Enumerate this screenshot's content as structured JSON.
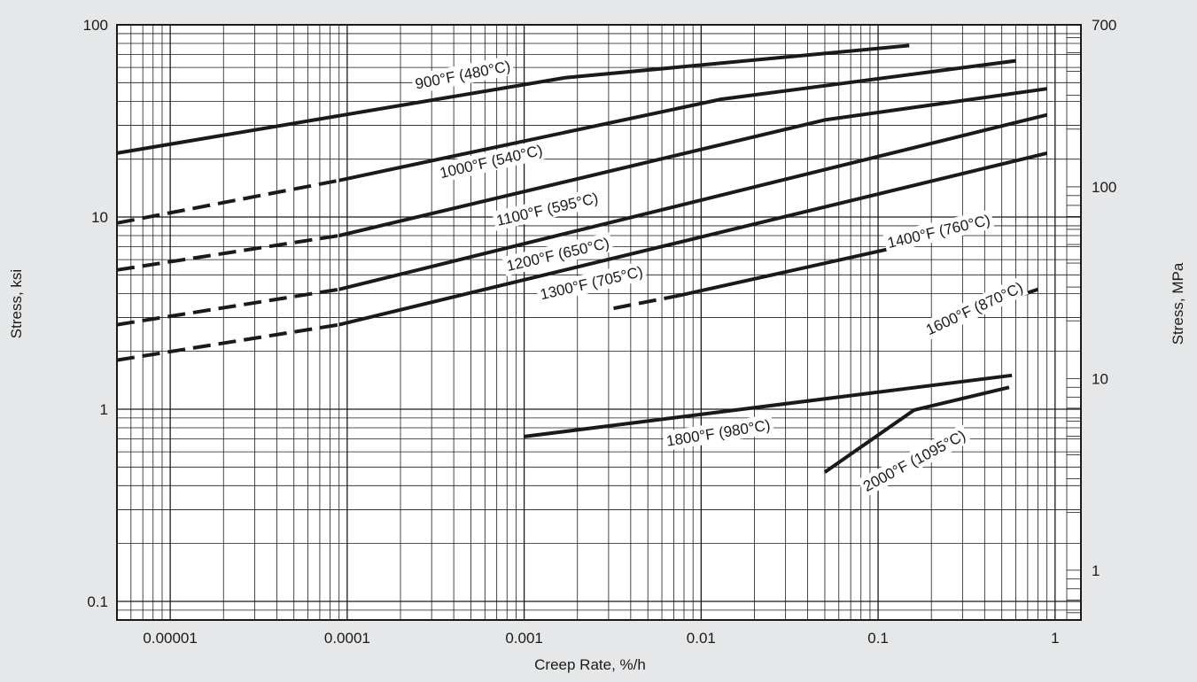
{
  "chart_data": {
    "type": "line",
    "x_scale": "log",
    "y_scale": "log",
    "xlabel": "Creep Rate, %/h",
    "ylabel_left": "Stress, ksi",
    "ylabel_right": "Stress, MPa",
    "xlim": [
      5e-06,
      1.4
    ],
    "ylim_left": [
      0.08,
      100
    ],
    "ylim_right": [
      0.55,
      700
    ],
    "x_tick_labels": [
      "0.00001",
      "0.0001",
      "0.001",
      "0.01",
      "0.1",
      "1"
    ],
    "y_left_tick_labels": [
      "0.1",
      "1",
      "10",
      "100"
    ],
    "y_right_tick_labels": [
      "1",
      "10",
      "100",
      "700"
    ],
    "grid": true,
    "line_color": "#1a1a1a",
    "background_color": "#ffffff",
    "page_background": "#e6e7e8",
    "series": [
      {
        "name": "900°F (480°C)",
        "segments": [
          {
            "style": "solid",
            "points": [
              [
                5e-06,
                21.5
              ],
              [
                0.0017,
                53
              ],
              [
                0.15,
                78
              ]
            ]
          }
        ]
      },
      {
        "name": "1000°F (540°C)",
        "segments": [
          {
            "style": "dashed",
            "points": [
              [
                5e-06,
                9.3
              ],
              [
                9e-05,
                15.5
              ]
            ]
          },
          {
            "style": "solid",
            "points": [
              [
                9e-05,
                15.5
              ],
              [
                0.013,
                41
              ],
              [
                0.6,
                65
              ]
            ]
          }
        ]
      },
      {
        "name": "1100°F (595°C)",
        "segments": [
          {
            "style": "dashed",
            "points": [
              [
                5e-06,
                5.3
              ],
              [
                9e-05,
                8.0
              ]
            ]
          },
          {
            "style": "solid",
            "points": [
              [
                9e-05,
                8.0
              ],
              [
                0.05,
                32
              ],
              [
                0.9,
                46.5
              ]
            ]
          }
        ]
      },
      {
        "name": "1200°F (650°C)",
        "segments": [
          {
            "style": "dashed",
            "points": [
              [
                5e-06,
                2.75
              ],
              [
                9e-05,
                4.2
              ]
            ]
          },
          {
            "style": "solid",
            "points": [
              [
                9e-05,
                4.2
              ],
              [
                0.9,
                34
              ]
            ]
          }
        ]
      },
      {
        "name": "1300°F (705°C)",
        "segments": [
          {
            "style": "dashed",
            "points": [
              [
                5e-06,
                1.8
              ],
              [
                9e-05,
                2.75
              ]
            ]
          },
          {
            "style": "solid",
            "points": [
              [
                9e-05,
                2.75
              ],
              [
                0.9,
                21.5
              ]
            ]
          }
        ]
      },
      {
        "name": "1400°F (760°C)",
        "segments": [
          {
            "style": "dashed",
            "points": [
              [
                0.0032,
                3.35
              ],
              [
                0.0075,
                3.9
              ]
            ]
          },
          {
            "style": "solid",
            "points": [
              [
                0.0075,
                3.9
              ],
              [
                0.45,
                9.0
              ]
            ]
          }
        ]
      },
      {
        "name": "1600°F (870°C)",
        "segments": [
          {
            "style": "solid",
            "points": [
              [
                0.27,
                3.0
              ],
              [
                0.8,
                4.2
              ]
            ]
          }
        ]
      },
      {
        "name": "1800°F (980°C)",
        "segments": [
          {
            "style": "solid",
            "points": [
              [
                0.001,
                0.72
              ],
              [
                0.57,
                1.5
              ]
            ]
          }
        ]
      },
      {
        "name": "2000°F (1095°C)",
        "segments": [
          {
            "style": "solid",
            "points": [
              [
                0.05,
                0.47
              ],
              [
                0.16,
                0.99
              ],
              [
                0.55,
                1.3
              ]
            ]
          }
        ]
      }
    ],
    "annotations": [
      {
        "text": "900°F (480°C)",
        "x": 0.00045,
        "y": 55,
        "angle": 11
      },
      {
        "text": "1000°F (540°C)",
        "x": 0.00065,
        "y": 19.5,
        "angle": 13
      },
      {
        "text": "1100°F (595°C)",
        "x": 0.00135,
        "y": 11.0,
        "angle": 13
      },
      {
        "text": "1200°F (650°C)",
        "x": 0.00155,
        "y": 6.4,
        "angle": 13
      },
      {
        "text": "1300°F (705°C)",
        "x": 0.0024,
        "y": 4.55,
        "angle": 13
      },
      {
        "text": "1400°F (760°C)",
        "x": 0.22,
        "y": 8.45,
        "angle": 13
      },
      {
        "text": "1600°F (870°C)",
        "x": 0.35,
        "y": 3.35,
        "angle": 25
      },
      {
        "text": "1800°F (980°C)",
        "x": 0.0125,
        "y": 0.755,
        "angle": 9
      },
      {
        "text": "2000°F (1095°C)",
        "x": 0.16,
        "y": 0.54,
        "angle": 28
      }
    ]
  }
}
